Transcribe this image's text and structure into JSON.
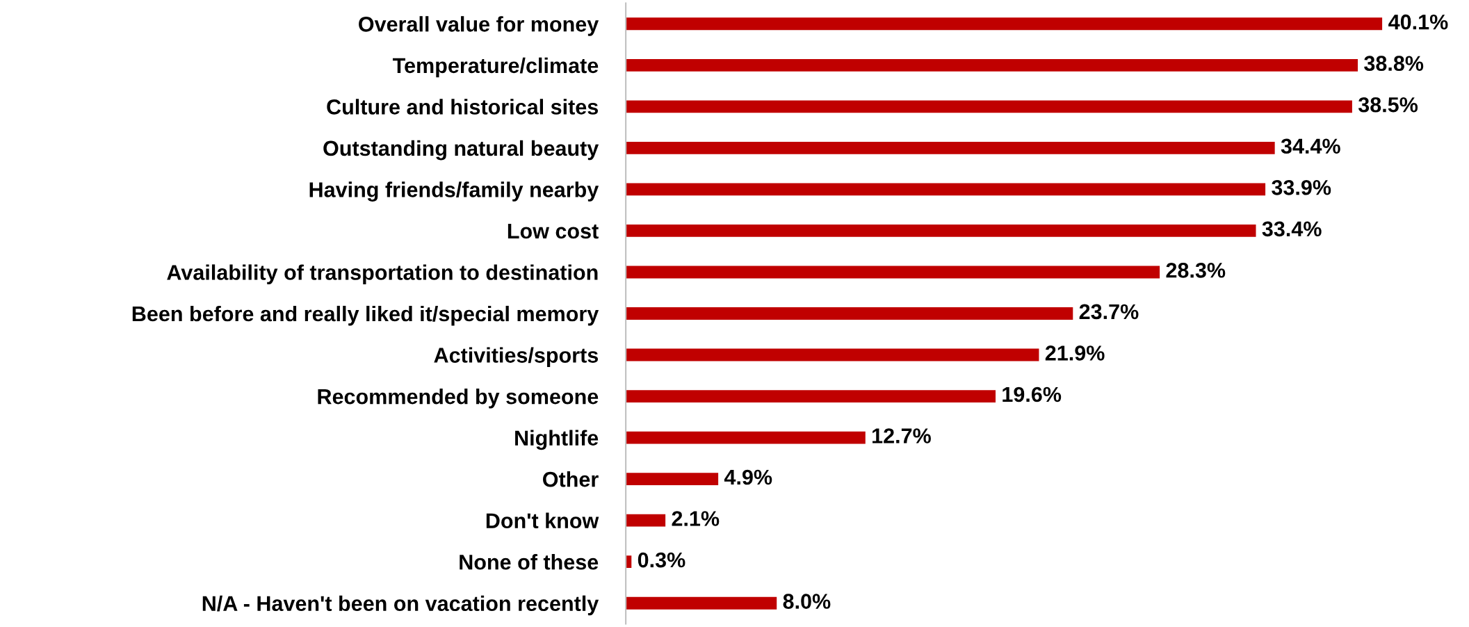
{
  "chart_data": {
    "type": "bar",
    "orientation": "horizontal",
    "categories": [
      "Overall value for money",
      "Temperature/climate",
      "Culture and historical sites",
      "Outstanding natural beauty",
      "Having friends/family nearby",
      "Low cost",
      "Availability of transportation to destination",
      "Been before and really liked it/special memory",
      "Activities/sports",
      "Recommended by someone",
      "Nightlife",
      "Other",
      "Don't know",
      "None of these",
      "N/A - Haven't been on vacation recently"
    ],
    "values": [
      40.1,
      38.8,
      38.5,
      34.4,
      33.9,
      33.4,
      28.3,
      23.7,
      21.9,
      19.6,
      12.7,
      4.9,
      2.1,
      0.3,
      8.0
    ],
    "value_labels": [
      "40.1%",
      "38.8%",
      "38.5%",
      "34.4%",
      "33.9%",
      "33.4%",
      "28.3%",
      "23.7%",
      "21.9%",
      "19.6%",
      "12.7%",
      "4.9%",
      "2.1%",
      "0.3%",
      "8.0%"
    ],
    "color": "#c00000",
    "grid": false,
    "legend": false
  }
}
